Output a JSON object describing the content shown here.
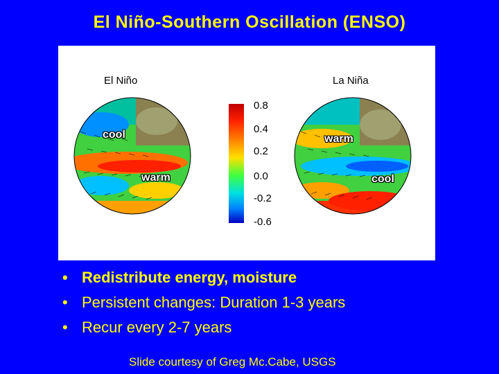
{
  "title": "El Niño-Southern Oscillation (ENSO)",
  "figure": {
    "left_label": "El Niño",
    "right_label": "La Niña",
    "left_tags": {
      "cool": "cool",
      "warm": "warm"
    },
    "right_tags": {
      "warm": "warm",
      "cool": "cool"
    },
    "colorbar_ticks": [
      "0.8",
      "0.4",
      "0.2",
      "0.0",
      "-0.2",
      "-0.6"
    ]
  },
  "bullets": [
    "Redistribute energy, moisture",
    "Persistent changes: Duration 1-3 years",
    "Recur every 2-7 years"
  ],
  "bullet_symbol": "•",
  "credit": "Slide courtesy of Greg Mc.Cabe, USGS",
  "colors": {
    "background": "#0000ff",
    "text": "#ffff00"
  }
}
